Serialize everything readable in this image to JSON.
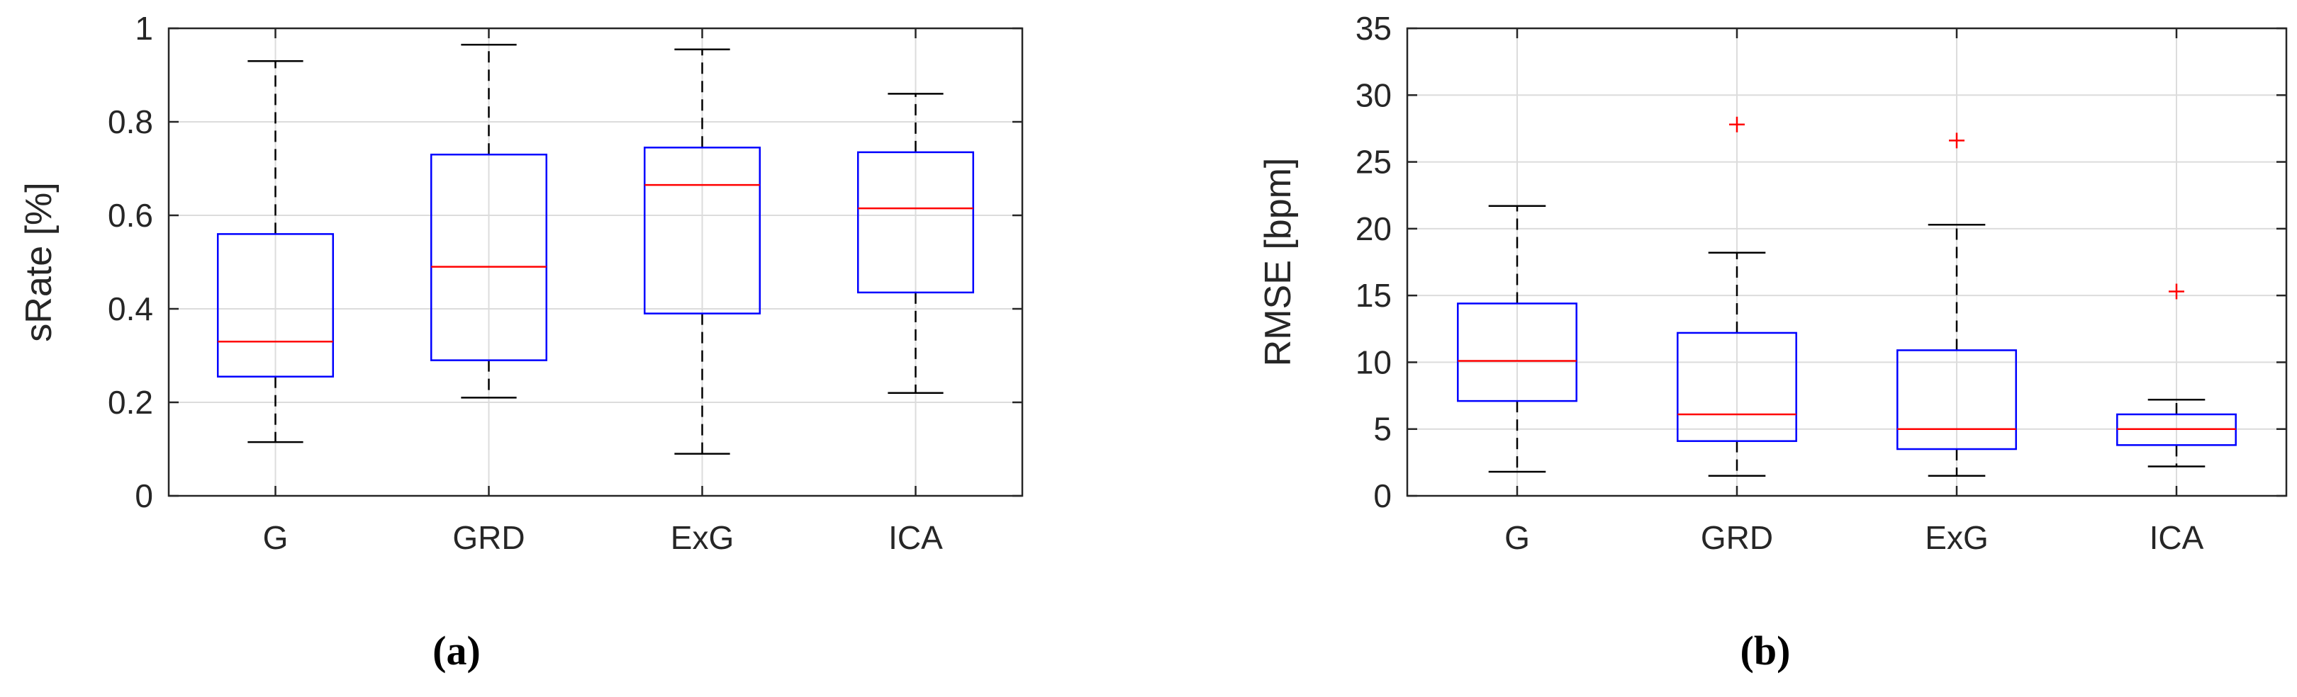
{
  "colors": {
    "box": "#0000ff",
    "median": "#ff0000",
    "whisker": "#000000",
    "outlier": "#ff0000",
    "grid": "#dcdcdc",
    "axis": "#262626"
  },
  "chart_data": [
    {
      "type": "box",
      "panel_label": "(a)",
      "ylabel": "sRate [%]",
      "ylim": [
        0,
        1
      ],
      "yticks": [
        0,
        0.2,
        0.4,
        0.6,
        0.8,
        1
      ],
      "ytick_labels": [
        "0",
        "0.2",
        "0.4",
        "0.6",
        "0.8",
        "1"
      ],
      "grid": true,
      "categories": [
        "G",
        "GRD",
        "ExG",
        "ICA"
      ],
      "boxes": [
        {
          "label": "G",
          "whisker_low": 0.115,
          "q1": 0.255,
          "median": 0.33,
          "q3": 0.56,
          "whisker_high": 0.93,
          "outliers": []
        },
        {
          "label": "GRD",
          "whisker_low": 0.21,
          "q1": 0.29,
          "median": 0.49,
          "q3": 0.73,
          "whisker_high": 0.965,
          "outliers": []
        },
        {
          "label": "ExG",
          "whisker_low": 0.09,
          "q1": 0.39,
          "median": 0.665,
          "q3": 0.745,
          "whisker_high": 0.955,
          "outliers": []
        },
        {
          "label": "ICA",
          "whisker_low": 0.22,
          "q1": 0.435,
          "median": 0.615,
          "q3": 0.735,
          "whisker_high": 0.86,
          "outliers": []
        }
      ]
    },
    {
      "type": "box",
      "panel_label": "(b)",
      "ylabel": "RMSE [bpm]",
      "ylim": [
        0,
        35
      ],
      "yticks": [
        0,
        5,
        10,
        15,
        20,
        25,
        30,
        35
      ],
      "ytick_labels": [
        "0",
        "5",
        "10",
        "15",
        "20",
        "25",
        "30",
        "35"
      ],
      "grid": true,
      "categories": [
        "G",
        "GRD",
        "ExG",
        "ICA"
      ],
      "boxes": [
        {
          "label": "G",
          "whisker_low": 1.8,
          "q1": 7.1,
          "median": 10.1,
          "q3": 14.4,
          "whisker_high": 21.7,
          "outliers": []
        },
        {
          "label": "GRD",
          "whisker_low": 1.5,
          "q1": 4.1,
          "median": 6.1,
          "q3": 12.2,
          "whisker_high": 18.2,
          "outliers": [
            27.8
          ]
        },
        {
          "label": "ExG",
          "whisker_low": 1.5,
          "q1": 3.5,
          "median": 5.0,
          "q3": 10.9,
          "whisker_high": 20.3,
          "outliers": [
            26.6
          ]
        },
        {
          "label": "ICA",
          "whisker_low": 2.2,
          "q1": 3.8,
          "median": 5.0,
          "q3": 6.1,
          "whisker_high": 7.2,
          "outliers": [
            15.3
          ]
        }
      ]
    }
  ]
}
